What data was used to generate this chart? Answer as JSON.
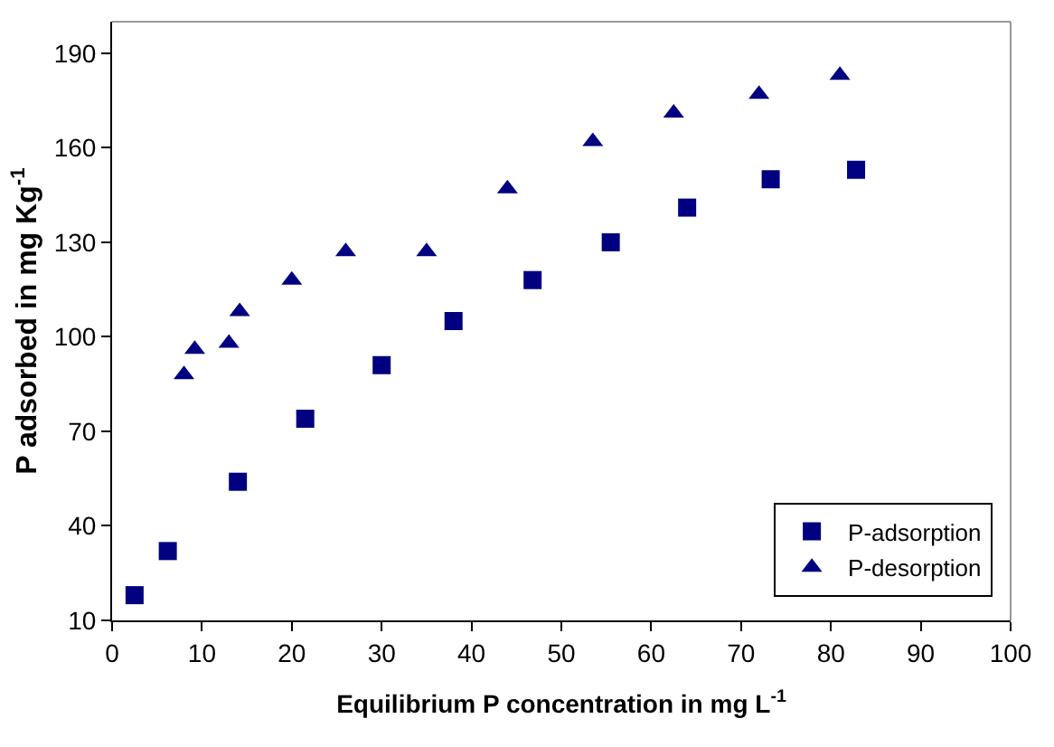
{
  "chart_data": {
    "type": "scatter",
    "xlabel": "Equilibrium P concentration in mg L$^{-1}$",
    "ylabel": "P adsorbed in mg Kg$^{-1}$",
    "xlim": [
      0,
      100
    ],
    "xticks": [
      0,
      10,
      20,
      30,
      40,
      50,
      60,
      70,
      80,
      90,
      100
    ],
    "ylim": [
      10,
      200
    ],
    "yticks": [
      10,
      40,
      70,
      100,
      130,
      160,
      190
    ],
    "grid": false,
    "legend": "bottom right",
    "series": [
      {
        "name": "P-adsorption",
        "color": "#000080",
        "marker": "square",
        "x": [
          2.5,
          6.2,
          14,
          21.5,
          30,
          38,
          46.8,
          55.5,
          64,
          73.3,
          82.8
        ],
        "values": [
          18,
          32,
          54,
          74,
          91,
          105,
          118,
          130,
          141,
          150,
          153
        ]
      },
      {
        "name": "P-desorption",
        "color": "#000080",
        "marker": "triangle",
        "x": [
          8,
          9.2,
          13,
          14.2,
          20,
          26,
          35,
          44,
          53.5,
          62.5,
          72,
          81
        ],
        "values": [
          88,
          96,
          98,
          108,
          118,
          127,
          127,
          147,
          162,
          171,
          177,
          183
        ]
      }
    ]
  }
}
